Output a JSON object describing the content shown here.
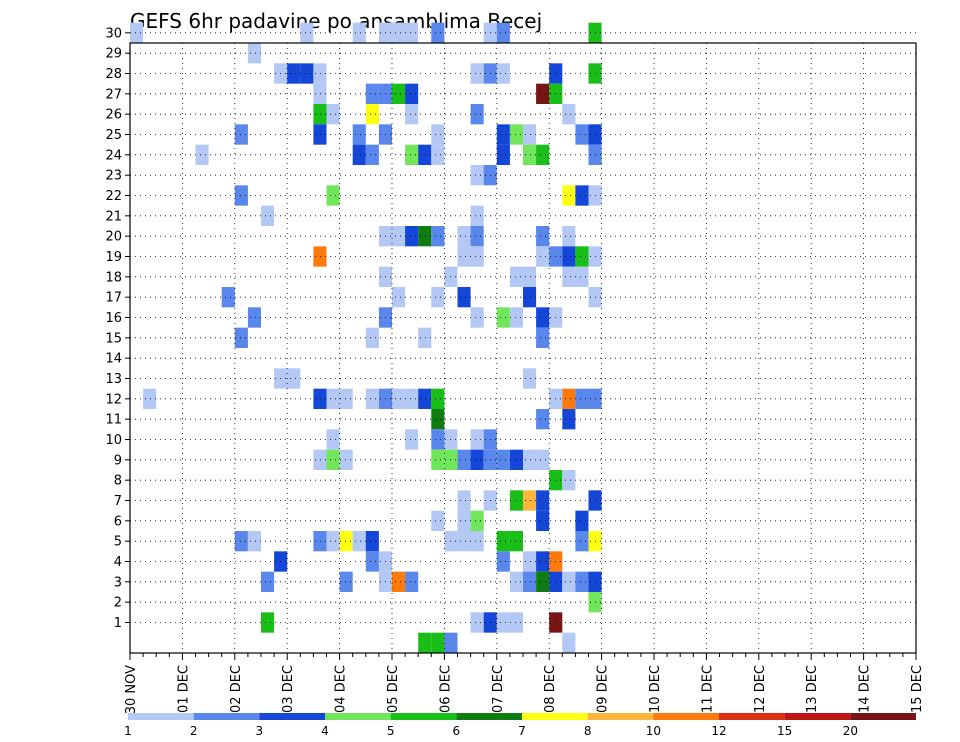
{
  "chart_data": {
    "type": "heatmap",
    "title": "GEFS 6hr padavine po ansamblima Becej",
    "xlabel": "",
    "ylabel": "",
    "x_ticks": [
      "30 NOV",
      "01 DEC",
      "02 DEC",
      "03 DEC",
      "04 DEC",
      "05 DEC",
      "06 DEC",
      "07 DEC",
      "08 DEC",
      "09 DEC",
      "10 DEC",
      "11 DEC",
      "12 DEC",
      "13 DEC",
      "14 DEC",
      "15 DEC"
    ],
    "y_ticks": [
      "1",
      "2",
      "3",
      "4",
      "5",
      "6",
      "7",
      "8",
      "9",
      "10",
      "11",
      "12",
      "13",
      "14",
      "15",
      "16",
      "17",
      "18",
      "19",
      "20",
      "21",
      "22",
      "23",
      "24",
      "25",
      "26",
      "27",
      "28",
      "29",
      "30"
    ],
    "time_steps_per_day": 4,
    "grid": true,
    "legend": {
      "position": "bottom",
      "thresholds": [
        "1",
        "2",
        "3",
        "4",
        "5",
        "6",
        "7",
        "8",
        "10",
        "12",
        "15",
        "20"
      ],
      "colors": [
        "#b4c8f5",
        "#5a87eb",
        "#1446d7",
        "#71e65b",
        "#19be19",
        "#0f7d0f",
        "#ffff14",
        "#ffb43c",
        "#ff7a0a",
        "#dc3214",
        "#be1414",
        "#781414"
      ]
    },
    "cells": [
      {
        "member": 30,
        "x": 0.5,
        "v": 1
      },
      {
        "member": 30,
        "x": 13.5,
        "v": 1
      },
      {
        "member": 30,
        "x": 17.5,
        "v": 1
      },
      {
        "member": 30,
        "x": 19.5,
        "v": 1
      },
      {
        "member": 30,
        "x": 20.5,
        "v": 1
      },
      {
        "member": 30,
        "x": 21.5,
        "v": 1
      },
      {
        "member": 30,
        "x": 23.5,
        "v": 2
      },
      {
        "member": 30,
        "x": 27.5,
        "v": 1
      },
      {
        "member": 30,
        "x": 28.5,
        "v": 2
      },
      {
        "member": 30,
        "x": 35.5,
        "v": 5
      },
      {
        "member": 29,
        "x": 9.5,
        "v": 1
      },
      {
        "member": 28,
        "x": 11.5,
        "v": 1
      },
      {
        "member": 28,
        "x": 12.5,
        "v": 3
      },
      {
        "member": 28,
        "x": 13.5,
        "v": 3
      },
      {
        "member": 28,
        "x": 14.5,
        "v": 1
      },
      {
        "member": 28,
        "x": 26.5,
        "v": 1
      },
      {
        "member": 28,
        "x": 27.5,
        "v": 2
      },
      {
        "member": 28,
        "x": 28.5,
        "v": 1
      },
      {
        "member": 28,
        "x": 32.5,
        "v": 3
      },
      {
        "member": 28,
        "x": 35.5,
        "v": 5
      },
      {
        "member": 27,
        "x": 14.5,
        "v": 1
      },
      {
        "member": 27,
        "x": 18.5,
        "v": 2
      },
      {
        "member": 27,
        "x": 19.5,
        "v": 2
      },
      {
        "member": 27,
        "x": 20.5,
        "v": 5
      },
      {
        "member": 27,
        "x": 21.5,
        "v": 3
      },
      {
        "member": 27,
        "x": 31.5,
        "v": 20
      },
      {
        "member": 27,
        "x": 32.5,
        "v": 5
      },
      {
        "member": 26,
        "x": 14.5,
        "v": 5
      },
      {
        "member": 26,
        "x": 15.5,
        "v": 1
      },
      {
        "member": 26,
        "x": 18.5,
        "v": 7
      },
      {
        "member": 26,
        "x": 21.5,
        "v": 1
      },
      {
        "member": 26,
        "x": 26.5,
        "v": 2
      },
      {
        "member": 26,
        "x": 33.5,
        "v": 1
      },
      {
        "member": 25,
        "x": 8.5,
        "v": 2
      },
      {
        "member": 25,
        "x": 14.5,
        "v": 3
      },
      {
        "member": 25,
        "x": 17.5,
        "v": 2
      },
      {
        "member": 25,
        "x": 19.5,
        "v": 2
      },
      {
        "member": 25,
        "x": 23.5,
        "v": 1
      },
      {
        "member": 25,
        "x": 28.5,
        "v": 3
      },
      {
        "member": 25,
        "x": 29.5,
        "v": 4
      },
      {
        "member": 25,
        "x": 30.5,
        "v": 1
      },
      {
        "member": 25,
        "x": 34.5,
        "v": 2
      },
      {
        "member": 25,
        "x": 35.5,
        "v": 3
      },
      {
        "member": 24,
        "x": 5.5,
        "v": 1
      },
      {
        "member": 24,
        "x": 17.5,
        "v": 3
      },
      {
        "member": 24,
        "x": 18.5,
        "v": 2
      },
      {
        "member": 24,
        "x": 21.5,
        "v": 4
      },
      {
        "member": 24,
        "x": 22.5,
        "v": 3
      },
      {
        "member": 24,
        "x": 23.5,
        "v": 1
      },
      {
        "member": 24,
        "x": 28.5,
        "v": 3
      },
      {
        "member": 24,
        "x": 30.5,
        "v": 4
      },
      {
        "member": 24,
        "x": 31.5,
        "v": 5
      },
      {
        "member": 24,
        "x": 35.5,
        "v": 2
      },
      {
        "member": 23,
        "x": 26.5,
        "v": 1
      },
      {
        "member": 23,
        "x": 27.5,
        "v": 2
      },
      {
        "member": 22,
        "x": 8.5,
        "v": 2
      },
      {
        "member": 22,
        "x": 15.5,
        "v": 4
      },
      {
        "member": 22,
        "x": 33.5,
        "v": 7
      },
      {
        "member": 22,
        "x": 34.5,
        "v": 3
      },
      {
        "member": 22,
        "x": 35.5,
        "v": 1
      },
      {
        "member": 21,
        "x": 10.5,
        "v": 1
      },
      {
        "member": 21,
        "x": 26.5,
        "v": 1
      },
      {
        "member": 20,
        "x": 19.5,
        "v": 1
      },
      {
        "member": 20,
        "x": 20.5,
        "v": 1
      },
      {
        "member": 20,
        "x": 21.5,
        "v": 3
      },
      {
        "member": 20,
        "x": 22.5,
        "v": 6
      },
      {
        "member": 20,
        "x": 23.5,
        "v": 2
      },
      {
        "member": 20,
        "x": 25.5,
        "v": 1
      },
      {
        "member": 20,
        "x": 26.5,
        "v": 2
      },
      {
        "member": 20,
        "x": 31.5,
        "v": 2
      },
      {
        "member": 20,
        "x": 33.5,
        "v": 1
      },
      {
        "member": 19,
        "x": 14.5,
        "v": 10
      },
      {
        "member": 19,
        "x": 25.5,
        "v": 1
      },
      {
        "member": 19,
        "x": 26.5,
        "v": 1
      },
      {
        "member": 19,
        "x": 31.5,
        "v": 1
      },
      {
        "member": 19,
        "x": 32.5,
        "v": 2
      },
      {
        "member": 19,
        "x": 33.5,
        "v": 3
      },
      {
        "member": 19,
        "x": 34.5,
        "v": 5
      },
      {
        "member": 19,
        "x": 35.5,
        "v": 1
      },
      {
        "member": 18,
        "x": 19.5,
        "v": 1
      },
      {
        "member": 18,
        "x": 24.5,
        "v": 1
      },
      {
        "member": 18,
        "x": 29.5,
        "v": 1
      },
      {
        "member": 18,
        "x": 30.5,
        "v": 1
      },
      {
        "member": 18,
        "x": 33.5,
        "v": 1
      },
      {
        "member": 18,
        "x": 34.5,
        "v": 1
      },
      {
        "member": 17,
        "x": 7.5,
        "v": 2
      },
      {
        "member": 17,
        "x": 20.5,
        "v": 1
      },
      {
        "member": 17,
        "x": 23.5,
        "v": 1
      },
      {
        "member": 17,
        "x": 25.5,
        "v": 3
      },
      {
        "member": 17,
        "x": 30.5,
        "v": 3
      },
      {
        "member": 17,
        "x": 35.5,
        "v": 1
      },
      {
        "member": 16,
        "x": 9.5,
        "v": 2
      },
      {
        "member": 16,
        "x": 19.5,
        "v": 2
      },
      {
        "member": 16,
        "x": 26.5,
        "v": 1
      },
      {
        "member": 16,
        "x": 28.5,
        "v": 4
      },
      {
        "member": 16,
        "x": 29.5,
        "v": 1
      },
      {
        "member": 16,
        "x": 31.5,
        "v": 3
      },
      {
        "member": 16,
        "x": 32.5,
        "v": 1
      },
      {
        "member": 15,
        "x": 8.5,
        "v": 2
      },
      {
        "member": 15,
        "x": 18.5,
        "v": 1
      },
      {
        "member": 15,
        "x": 22.5,
        "v": 1
      },
      {
        "member": 15,
        "x": 31.5,
        "v": 2
      },
      {
        "member": 13,
        "x": 11.5,
        "v": 1
      },
      {
        "member": 13,
        "x": 12.5,
        "v": 1
      },
      {
        "member": 13,
        "x": 30.5,
        "v": 1
      },
      {
        "member": 12,
        "x": 1.5,
        "v": 1
      },
      {
        "member": 12,
        "x": 14.5,
        "v": 3
      },
      {
        "member": 12,
        "x": 15.5,
        "v": 1
      },
      {
        "member": 12,
        "x": 16.5,
        "v": 1
      },
      {
        "member": 12,
        "x": 18.5,
        "v": 1
      },
      {
        "member": 12,
        "x": 19.5,
        "v": 2
      },
      {
        "member": 12,
        "x": 20.5,
        "v": 1
      },
      {
        "member": 12,
        "x": 21.5,
        "v": 1
      },
      {
        "member": 12,
        "x": 22.5,
        "v": 3
      },
      {
        "member": 12,
        "x": 23.5,
        "v": 5
      },
      {
        "member": 12,
        "x": 32.5,
        "v": 1
      },
      {
        "member": 12,
        "x": 33.5,
        "v": 10
      },
      {
        "member": 12,
        "x": 34.5,
        "v": 2
      },
      {
        "member": 12,
        "x": 35.5,
        "v": 2
      },
      {
        "member": 11,
        "x": 23.5,
        "v": 6
      },
      {
        "member": 11,
        "x": 31.5,
        "v": 2
      },
      {
        "member": 11,
        "x": 33.5,
        "v": 3
      },
      {
        "member": 10,
        "x": 15.5,
        "v": 1
      },
      {
        "member": 10,
        "x": 21.5,
        "v": 1
      },
      {
        "member": 10,
        "x": 23.5,
        "v": 2
      },
      {
        "member": 10,
        "x": 24.5,
        "v": 1
      },
      {
        "member": 10,
        "x": 26.5,
        "v": 1
      },
      {
        "member": 10,
        "x": 27.5,
        "v": 2
      },
      {
        "member": 9,
        "x": 14.5,
        "v": 1
      },
      {
        "member": 9,
        "x": 15.5,
        "v": 4
      },
      {
        "member": 9,
        "x": 16.5,
        "v": 1
      },
      {
        "member": 9,
        "x": 23.5,
        "v": 4
      },
      {
        "member": 9,
        "x": 24.5,
        "v": 4
      },
      {
        "member": 9,
        "x": 25.5,
        "v": 2
      },
      {
        "member": 9,
        "x": 26.5,
        "v": 3
      },
      {
        "member": 9,
        "x": 27.5,
        "v": 2
      },
      {
        "member": 9,
        "x": 28.5,
        "v": 2
      },
      {
        "member": 9,
        "x": 29.5,
        "v": 3
      },
      {
        "member": 9,
        "x": 30.5,
        "v": 1
      },
      {
        "member": 9,
        "x": 31.5,
        "v": 1
      },
      {
        "member": 8,
        "x": 32.5,
        "v": 5
      },
      {
        "member": 8,
        "x": 33.5,
        "v": 1
      },
      {
        "member": 7,
        "x": 25.5,
        "v": 1
      },
      {
        "member": 7,
        "x": 27.5,
        "v": 1
      },
      {
        "member": 7,
        "x": 29.5,
        "v": 5
      },
      {
        "member": 7,
        "x": 30.5,
        "v": 8
      },
      {
        "member": 7,
        "x": 31.5,
        "v": 3
      },
      {
        "member": 7,
        "x": 35.5,
        "v": 3
      },
      {
        "member": 6,
        "x": 23.5,
        "v": 1
      },
      {
        "member": 6,
        "x": 25.5,
        "v": 1
      },
      {
        "member": 6,
        "x": 26.5,
        "v": 4
      },
      {
        "member": 6,
        "x": 31.5,
        "v": 3
      },
      {
        "member": 6,
        "x": 34.5,
        "v": 3
      },
      {
        "member": 5,
        "x": 8.5,
        "v": 2
      },
      {
        "member": 5,
        "x": 9.5,
        "v": 1
      },
      {
        "member": 5,
        "x": 14.5,
        "v": 2
      },
      {
        "member": 5,
        "x": 15.5,
        "v": 1
      },
      {
        "member": 5,
        "x": 16.5,
        "v": 7
      },
      {
        "member": 5,
        "x": 17.5,
        "v": 1
      },
      {
        "member": 5,
        "x": 18.5,
        "v": 3
      },
      {
        "member": 5,
        "x": 24.5,
        "v": 1
      },
      {
        "member": 5,
        "x": 25.5,
        "v": 1
      },
      {
        "member": 5,
        "x": 26.5,
        "v": 1
      },
      {
        "member": 5,
        "x": 28.5,
        "v": 5
      },
      {
        "member": 5,
        "x": 29.5,
        "v": 5
      },
      {
        "member": 5,
        "x": 34.5,
        "v": 2
      },
      {
        "member": 5,
        "x": 35.5,
        "v": 7
      },
      {
        "member": 4,
        "x": 11.5,
        "v": 3
      },
      {
        "member": 4,
        "x": 18.5,
        "v": 2
      },
      {
        "member": 4,
        "x": 19.5,
        "v": 1
      },
      {
        "member": 4,
        "x": 28.5,
        "v": 2
      },
      {
        "member": 4,
        "x": 30.5,
        "v": 1
      },
      {
        "member": 4,
        "x": 31.5,
        "v": 3
      },
      {
        "member": 4,
        "x": 32.5,
        "v": 10
      },
      {
        "member": 3,
        "x": 10.5,
        "v": 2
      },
      {
        "member": 3,
        "x": 16.5,
        "v": 2
      },
      {
        "member": 3,
        "x": 19.5,
        "v": 1
      },
      {
        "member": 3,
        "x": 20.5,
        "v": 10
      },
      {
        "member": 3,
        "x": 21.5,
        "v": 2
      },
      {
        "member": 3,
        "x": 29.5,
        "v": 1
      },
      {
        "member": 3,
        "x": 30.5,
        "v": 2
      },
      {
        "member": 3,
        "x": 31.5,
        "v": 6
      },
      {
        "member": 3,
        "x": 32.5,
        "v": 3
      },
      {
        "member": 3,
        "x": 33.5,
        "v": 1
      },
      {
        "member": 3,
        "x": 34.5,
        "v": 2
      },
      {
        "member": 3,
        "x": 35.5,
        "v": 3
      },
      {
        "member": 2,
        "x": 35.5,
        "v": 4
      },
      {
        "member": 1,
        "x": 10.5,
        "v": 5
      },
      {
        "member": 1,
        "x": 26.5,
        "v": 1
      },
      {
        "member": 1,
        "x": 27.5,
        "v": 3
      },
      {
        "member": 1,
        "x": 28.5,
        "v": 1
      },
      {
        "member": 1,
        "x": 29.5,
        "v": 1
      },
      {
        "member": 1,
        "x": 32.5,
        "v": 20
      },
      {
        "member": 0,
        "x": 22.5,
        "v": 5
      },
      {
        "member": 0,
        "x": 23.5,
        "v": 5
      },
      {
        "member": 0,
        "x": 24.5,
        "v": 2
      },
      {
        "member": 0,
        "x": 33.5,
        "v": 1
      }
    ]
  }
}
